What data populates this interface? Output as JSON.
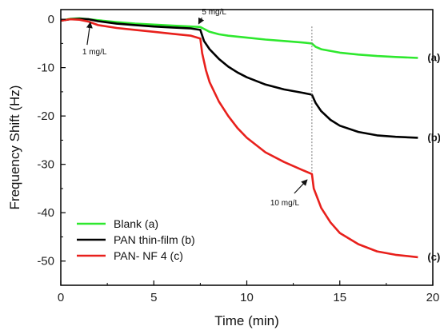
{
  "chart_data": {
    "type": "line",
    "xlabel": "Time (min)",
    "ylabel": "Frequency Shift (Hz)",
    "xlim": [
      0,
      20
    ],
    "ylim": [
      -55,
      2
    ],
    "xticks": [
      "0",
      "5",
      "10",
      "15",
      "20"
    ],
    "xtick_values": [
      0,
      5,
      10,
      15,
      20
    ],
    "yticks": [
      "0",
      "-10",
      "-20",
      "-30",
      "-40",
      "-50"
    ],
    "ytick_values": [
      0,
      -10,
      -20,
      -30,
      -40,
      -50
    ],
    "grid": false,
    "legend_position": "bottom-left",
    "series": [
      {
        "name": "Blank (a)",
        "end_label": "(a)",
        "color": "#2ee82e",
        "points": [
          [
            0,
            -0.3
          ],
          [
            0.5,
            0.1
          ],
          [
            1,
            0.2
          ],
          [
            1.5,
            0
          ],
          [
            2,
            -0.2
          ],
          [
            3,
            -0.6
          ],
          [
            4,
            -0.9
          ],
          [
            5,
            -1.1
          ],
          [
            6,
            -1.3
          ],
          [
            7,
            -1.5
          ],
          [
            7.5,
            -1.6
          ],
          [
            8,
            -2.6
          ],
          [
            8.5,
            -3.1
          ],
          [
            9,
            -3.4
          ],
          [
            10,
            -3.8
          ],
          [
            11,
            -4.2
          ],
          [
            12,
            -4.5
          ],
          [
            13,
            -4.8
          ],
          [
            13.5,
            -5.0
          ],
          [
            13.7,
            -5.7
          ],
          [
            14,
            -6.2
          ],
          [
            15,
            -6.9
          ],
          [
            16,
            -7.3
          ],
          [
            17,
            -7.6
          ],
          [
            18,
            -7.8
          ],
          [
            19.2,
            -8.0
          ]
        ]
      },
      {
        "name": "PAN thin-film (b)",
        "end_label": "(b)",
        "color": "#000000",
        "points": [
          [
            0,
            -0.3
          ],
          [
            0.5,
            0
          ],
          [
            1,
            0.1
          ],
          [
            1.5,
            0
          ],
          [
            2,
            -0.4
          ],
          [
            3,
            -0.9
          ],
          [
            4,
            -1.2
          ],
          [
            5,
            -1.5
          ],
          [
            6,
            -1.7
          ],
          [
            7,
            -1.9
          ],
          [
            7.5,
            -2.2
          ],
          [
            7.7,
            -4.5
          ],
          [
            8,
            -6.2
          ],
          [
            8.5,
            -8.2
          ],
          [
            9,
            -9.8
          ],
          [
            9.5,
            -11.0
          ],
          [
            10,
            -12.0
          ],
          [
            11,
            -13.5
          ],
          [
            12,
            -14.5
          ],
          [
            13,
            -15.2
          ],
          [
            13.5,
            -15.6
          ],
          [
            13.7,
            -17.3
          ],
          [
            14,
            -19.0
          ],
          [
            14.5,
            -20.8
          ],
          [
            15,
            -22.0
          ],
          [
            16,
            -23.3
          ],
          [
            17,
            -24.0
          ],
          [
            18,
            -24.3
          ],
          [
            19.2,
            -24.5
          ]
        ]
      },
      {
        "name": "PAN- NF 4 (c)",
        "end_label": "(c)",
        "color": "#e8201c",
        "points": [
          [
            0,
            -0.3
          ],
          [
            0.5,
            0
          ],
          [
            1,
            -0.1
          ],
          [
            1.5,
            -0.5
          ],
          [
            2,
            -1.2
          ],
          [
            3,
            -1.8
          ],
          [
            4,
            -2.2
          ],
          [
            5,
            -2.6
          ],
          [
            6,
            -3.0
          ],
          [
            7,
            -3.4
          ],
          [
            7.5,
            -4.0
          ],
          [
            7.6,
            -7.0
          ],
          [
            7.8,
            -10.5
          ],
          [
            8,
            -13.0
          ],
          [
            8.5,
            -17.0
          ],
          [
            9,
            -20.0
          ],
          [
            9.5,
            -22.5
          ],
          [
            10,
            -24.5
          ],
          [
            11,
            -27.5
          ],
          [
            12,
            -29.5
          ],
          [
            13,
            -31.2
          ],
          [
            13.5,
            -32.0
          ],
          [
            13.6,
            -35.0
          ],
          [
            13.8,
            -37.0
          ],
          [
            14,
            -39.0
          ],
          [
            14.5,
            -42.0
          ],
          [
            15,
            -44.2
          ],
          [
            16,
            -46.5
          ],
          [
            17,
            -48.0
          ],
          [
            18,
            -48.7
          ],
          [
            19.2,
            -49.2
          ]
        ]
      }
    ],
    "annotations": [
      {
        "text": "1 mg/L",
        "x": 1.5,
        "y": 0
      },
      {
        "text": "5 mg/L",
        "x": 7.5,
        "y": -1.6
      },
      {
        "text": "10 mg/L",
        "x": 13.5,
        "y": -32.0
      }
    ]
  }
}
